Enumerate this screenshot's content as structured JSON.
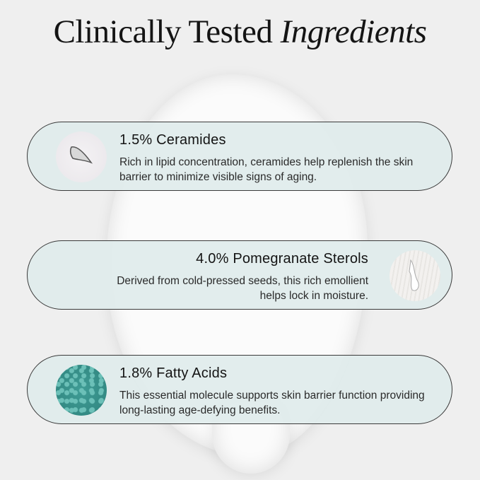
{
  "title": {
    "regular": "Clinically Tested ",
    "italic": "Ingredients"
  },
  "colors": {
    "background": "#efefef",
    "card": "#e0ecec",
    "card_border": "#3a3a3a",
    "fatty_acids_thumb": "#3f9c95"
  },
  "ingredients": [
    {
      "name": "1.5% Ceramides",
      "description": "Rich in lipid concentration, ceramides help replenish the skin barrier to minimize visible signs of aging.",
      "icon": "cream-swipe-image"
    },
    {
      "name": "4.0% Pomegranate Sterols",
      "description": "Derived from cold-pressed seeds, this rich emollient helps lock in moisture.",
      "icon": "cream-drip-image"
    },
    {
      "name": "1.8% Fatty Acids",
      "description": "This essential molecule supports skin barrier function providing long-lasting age-defying benefits.",
      "icon": "teal-bubbles-image"
    }
  ]
}
